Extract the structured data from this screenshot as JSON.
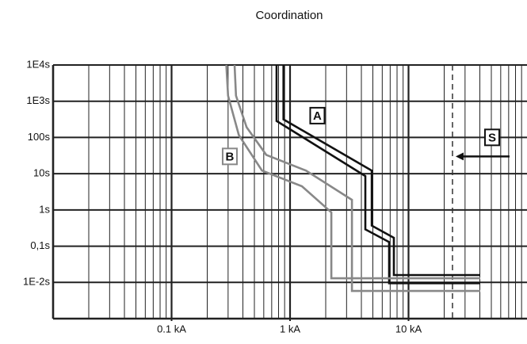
{
  "chart_data": {
    "type": "line",
    "title": "Coordination",
    "xscale": "log",
    "yscale": "log",
    "grid": true,
    "xlim": [
      0.01,
      100
    ],
    "ylim": [
      0.001,
      10000
    ],
    "xticks": [
      {
        "value": 0.1,
        "label": "0.1 kA"
      },
      {
        "value": 1,
        "label": "1 kA"
      },
      {
        "value": 10,
        "label": "10 kA"
      }
    ],
    "yticks": [
      {
        "value": 10000,
        "label": "1E4s"
      },
      {
        "value": 1000,
        "label": "1E3s"
      },
      {
        "value": 100,
        "label": "100s"
      },
      {
        "value": 10,
        "label": "10s"
      },
      {
        "value": 1,
        "label": "1s"
      },
      {
        "value": 0.1,
        "label": "0,1s"
      },
      {
        "value": 0.01,
        "label": "1E-2s"
      }
    ],
    "series": [
      {
        "name": "A",
        "color": "#111111",
        "label_at": [
          1.7,
          400
        ],
        "curves": [
          {
            "x": [
              0.88,
              0.88,
              4.89,
              4.89,
              7.52,
              7.52,
              40.3
            ],
            "values": [
              10000,
              316,
              12.2,
              0.37,
              0.17,
              0.016,
              0.016
            ]
          },
          {
            "x": [
              0.77,
              0.77,
              4.32,
              4.32,
              6.86,
              6.86,
              40.3
            ],
            "values": [
              10000,
              286,
              8.6,
              0.29,
              0.13,
              0.0095,
              0.0095
            ]
          }
        ]
      },
      {
        "name": "B",
        "color": "#888888",
        "label_at": [
          0.31,
          30
        ],
        "curves": [
          {
            "x": [
              0.34,
              0.35,
              0.43,
              0.63,
              1.36,
              3.33,
              3.33,
              40.3
            ],
            "values": [
              10000,
              1420,
              192,
              33,
              12.2,
              1.9,
              0.0058,
              0.0058
            ]
          },
          {
            "x": [
              0.29,
              0.3,
              0.37,
              0.58,
              1.26,
              2.23,
              2.23,
              40.3
            ],
            "values": [
              10000,
              1420,
              116,
              12.2,
              4.5,
              0.86,
              0.013,
              0.013
            ]
          }
        ]
      }
    ],
    "marker_line": {
      "name": "S",
      "x": 23.5
    }
  }
}
